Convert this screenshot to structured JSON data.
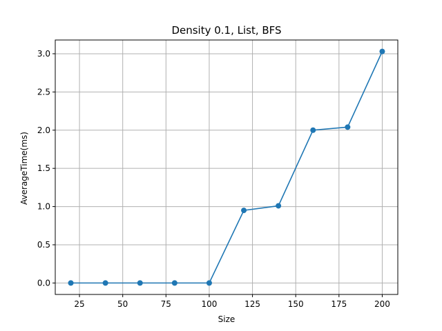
{
  "chart_data": {
    "type": "line",
    "title": "Density 0.1, List, BFS",
    "xlabel": "Size",
    "ylabel": "AverageTime(ms)",
    "x": [
      20,
      40,
      60,
      80,
      100,
      120,
      140,
      160,
      180,
      200
    ],
    "series": [
      {
        "values": [
          0.0,
          0.0,
          0.0,
          0.0,
          0.0,
          0.95,
          1.01,
          2.0,
          2.04,
          3.03
        ]
      }
    ],
    "xlim": [
      11,
      209
    ],
    "ylim": [
      -0.15,
      3.18
    ],
    "xticks": [
      25,
      50,
      75,
      100,
      125,
      150,
      175,
      200
    ],
    "yticks": [
      0.0,
      0.5,
      1.0,
      1.5,
      2.0,
      2.5,
      3.0
    ],
    "xtick_labels": [
      "25",
      "50",
      "75",
      "100",
      "125",
      "150",
      "175",
      "200"
    ],
    "ytick_labels": [
      "0.0",
      "0.5",
      "1.0",
      "1.5",
      "2.0",
      "2.5",
      "3.0"
    ],
    "grid": true,
    "line_color": "#1f77b4",
    "grid_color": "#b0b0b0"
  }
}
